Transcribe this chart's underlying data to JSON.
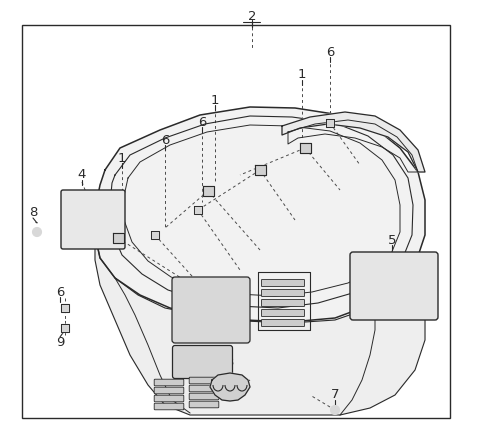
{
  "fig_width": 4.8,
  "fig_height": 4.46,
  "dpi": 100,
  "bg": "#ffffff",
  "lc": "#2a2a2a",
  "dc": "#4a4a4a",
  "border": [
    22,
    25,
    450,
    418
  ]
}
